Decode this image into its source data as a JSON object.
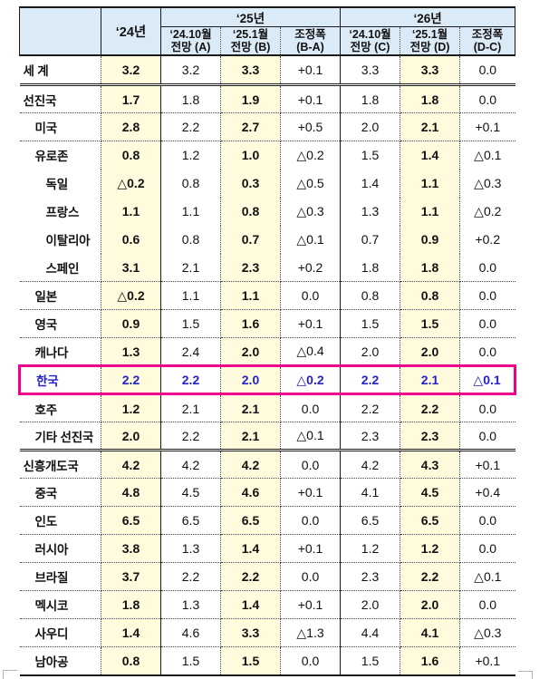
{
  "colors": {
    "header_bg": "#dbeaf7",
    "cell_highlight_bg": "#fffbdc",
    "korea_box_border": "#ec008c",
    "korea_text": "#2222cc",
    "grid_line": "#1a1a1a"
  },
  "header": {
    "col_2024": "‘24년",
    "group_2025": "‘25년",
    "group_2026": "‘26년",
    "subcols_2025": [
      {
        "line1": "‘24.10월",
        "line2": "전망 (A)"
      },
      {
        "line1": "‘25.1월",
        "line2": "전망 (B)"
      },
      {
        "line1": "조정폭",
        "line2": "(B-A)"
      }
    ],
    "subcols_2026": [
      {
        "line1": "‘24.10월",
        "line2": "전망 (C)"
      },
      {
        "line1": "‘25.1월",
        "line2": "전망 (D)"
      },
      {
        "line1": "조정폭",
        "line2": "(D-C)"
      }
    ]
  },
  "rows": [
    {
      "label": "세  계",
      "indent": 0,
      "values": [
        "3.2",
        "3.2",
        "3.3",
        "+0.1",
        "3.3",
        "3.3",
        "0.0"
      ],
      "sep": "double",
      "highlight": false
    },
    {
      "label": "선진국",
      "indent": 0,
      "values": [
        "1.7",
        "1.8",
        "1.9",
        "+0.1",
        "1.8",
        "1.8",
        "0.0"
      ],
      "sep": "dotted",
      "highlight": false
    },
    {
      "label": "미국",
      "indent": 1,
      "values": [
        "2.8",
        "2.2",
        "2.7",
        "+0.5",
        "2.0",
        "2.1",
        "+0.1"
      ],
      "sep": "dotted",
      "highlight": false
    },
    {
      "label": "유로존",
      "indent": 1,
      "values": [
        "0.8",
        "1.2",
        "1.0",
        "△0.2",
        "1.5",
        "1.4",
        "△0.1"
      ],
      "sep": "none",
      "highlight": false
    },
    {
      "label": "독일",
      "indent": 2,
      "values": [
        "△0.2",
        "0.8",
        "0.3",
        "△0.5",
        "1.4",
        "1.1",
        "△0.3"
      ],
      "sep": "none",
      "highlight": false
    },
    {
      "label": "프랑스",
      "indent": 2,
      "values": [
        "1.1",
        "1.1",
        "0.8",
        "△0.3",
        "1.3",
        "1.1",
        "△0.2"
      ],
      "sep": "none",
      "highlight": false
    },
    {
      "label": "이탈리아",
      "indent": 2,
      "values": [
        "0.6",
        "0.8",
        "0.7",
        "△0.1",
        "0.7",
        "0.9",
        "+0.2"
      ],
      "sep": "none",
      "highlight": false
    },
    {
      "label": "스페인",
      "indent": 2,
      "values": [
        "3.1",
        "2.1",
        "2.3",
        "+0.2",
        "1.8",
        "1.8",
        "0.0"
      ],
      "sep": "dotted",
      "highlight": false
    },
    {
      "label": "일본",
      "indent": 1,
      "values": [
        "△0.2",
        "1.1",
        "1.1",
        "0.0",
        "0.8",
        "0.8",
        "0.0"
      ],
      "sep": "dotted",
      "highlight": false
    },
    {
      "label": "영국",
      "indent": 1,
      "values": [
        "0.9",
        "1.5",
        "1.6",
        "+0.1",
        "1.5",
        "1.5",
        "0.0"
      ],
      "sep": "dotted",
      "highlight": false
    },
    {
      "label": "캐나다",
      "indent": 1,
      "values": [
        "1.3",
        "2.4",
        "2.0",
        "△0.4",
        "2.0",
        "2.0",
        "0.0"
      ],
      "sep": "dotted",
      "highlight": false
    },
    {
      "label": "한국",
      "indent": 1,
      "values": [
        "2.2",
        "2.2",
        "2.0",
        "△0.2",
        "2.2",
        "2.1",
        "△0.1"
      ],
      "sep": "dotted",
      "highlight": true
    },
    {
      "label": "호주",
      "indent": 1,
      "values": [
        "1.2",
        "2.1",
        "2.1",
        "0.0",
        "2.2",
        "2.2",
        "0.0"
      ],
      "sep": "dotted",
      "highlight": false
    },
    {
      "label": "기타 선진국",
      "indent": 1,
      "values": [
        "2.0",
        "2.2",
        "2.1",
        "△0.1",
        "2.3",
        "2.3",
        "0.0"
      ],
      "sep": "double",
      "highlight": false
    },
    {
      "label": "신흥개도국",
      "indent": 0,
      "values": [
        "4.2",
        "4.2",
        "4.2",
        "0.0",
        "4.2",
        "4.3",
        "+0.1"
      ],
      "sep": "dotted",
      "highlight": false
    },
    {
      "label": "중국",
      "indent": 1,
      "values": [
        "4.8",
        "4.5",
        "4.6",
        "+0.1",
        "4.1",
        "4.5",
        "+0.4"
      ],
      "sep": "dotted",
      "highlight": false
    },
    {
      "label": "인도",
      "indent": 1,
      "values": [
        "6.5",
        "6.5",
        "6.5",
        "0.0",
        "6.5",
        "6.5",
        "0.0"
      ],
      "sep": "dotted",
      "highlight": false
    },
    {
      "label": "러시아",
      "indent": 1,
      "values": [
        "3.8",
        "1.3",
        "1.4",
        "+0.1",
        "1.2",
        "1.2",
        "0.0"
      ],
      "sep": "dotted",
      "highlight": false
    },
    {
      "label": "브라질",
      "indent": 1,
      "values": [
        "3.7",
        "2.2",
        "2.2",
        "0.0",
        "2.3",
        "2.2",
        "△0.1"
      ],
      "sep": "dotted",
      "highlight": false
    },
    {
      "label": "멕시코",
      "indent": 1,
      "values": [
        "1.8",
        "1.3",
        "1.4",
        "+0.1",
        "2.0",
        "2.0",
        "0.0"
      ],
      "sep": "dotted",
      "highlight": false
    },
    {
      "label": "사우디",
      "indent": 1,
      "values": [
        "1.4",
        "4.6",
        "3.3",
        "△1.3",
        "4.4",
        "4.1",
        "△0.3"
      ],
      "sep": "dotted",
      "highlight": false
    },
    {
      "label": "남아공",
      "indent": 1,
      "values": [
        "0.8",
        "1.5",
        "1.5",
        "0.0",
        "1.5",
        "1.6",
        "+0.1"
      ],
      "sep": "bottom",
      "highlight": false
    }
  ]
}
